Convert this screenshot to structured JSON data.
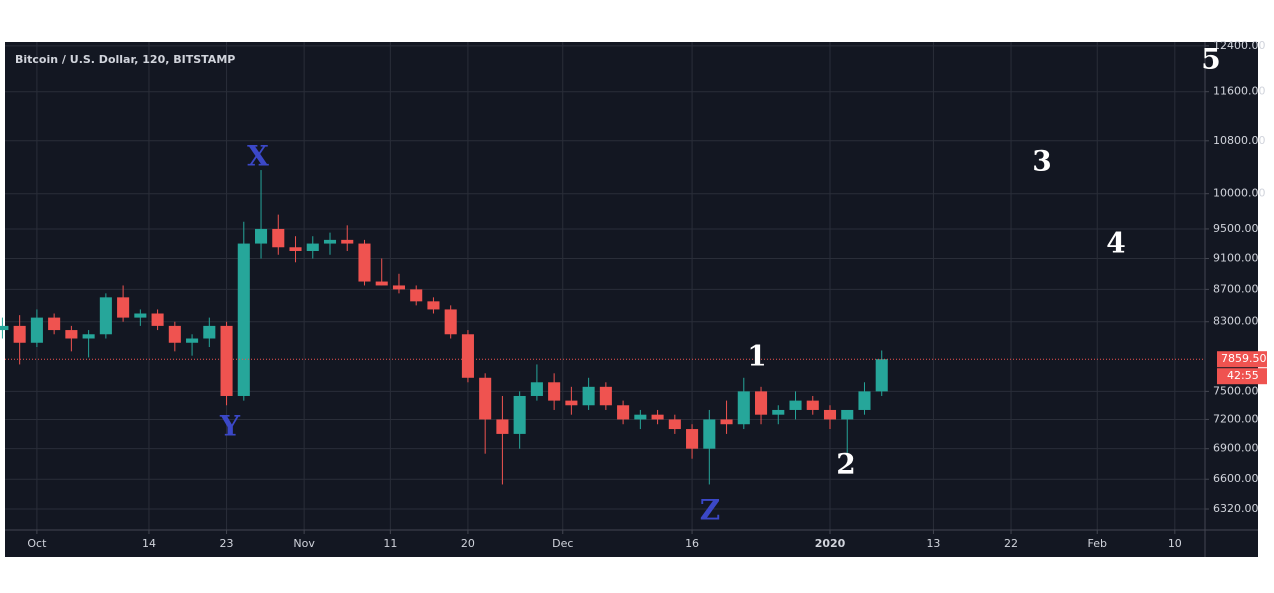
{
  "chart_data": {
    "type": "candlestick",
    "title": "Bitcoin / U.S. Dollar, 120, BITSTAMP",
    "log_scale": true,
    "grid": true,
    "up_color": "#26a69a",
    "down_color": "#ef5350",
    "xlim": [
      -3.7,
      135.5
    ],
    "ylim": [
      6130,
      12470
    ],
    "xticks": [
      {
        "value": 0,
        "label": "Oct"
      },
      {
        "value": 13,
        "label": "14"
      },
      {
        "value": 22,
        "label": "23"
      },
      {
        "value": 31,
        "label": "Nov"
      },
      {
        "value": 41,
        "label": "11"
      },
      {
        "value": 50,
        "label": "20"
      },
      {
        "value": 61,
        "label": "Dec"
      },
      {
        "value": 76,
        "label": "16"
      },
      {
        "value": 92,
        "label": "2020"
      },
      {
        "value": 104,
        "label": "13"
      },
      {
        "value": 113,
        "label": "22"
      },
      {
        "value": 123,
        "label": "Feb"
      },
      {
        "value": 132,
        "label": "10"
      }
    ],
    "yticks": [
      {
        "value": 6320,
        "label": "6320.00"
      },
      {
        "value": 6600,
        "label": "6600.00"
      },
      {
        "value": 6900,
        "label": "6900.00"
      },
      {
        "value": 7200,
        "label": "7200.00"
      },
      {
        "value": 7500,
        "label": "7500.00"
      },
      {
        "value": 8300,
        "label": "8300.00"
      },
      {
        "value": 8700,
        "label": "8700.00"
      },
      {
        "value": 9100,
        "label": "9100.00"
      },
      {
        "value": 9500,
        "label": "9500.00"
      },
      {
        "value": 10000,
        "label": "10000.00"
      },
      {
        "value": 10800,
        "label": "10800.00"
      },
      {
        "value": 11600,
        "label": "11600.00"
      },
      {
        "value": 12400,
        "label": "12400.00"
      }
    ],
    "x": [
      -4,
      -2,
      0,
      2,
      4,
      6,
      8,
      10,
      12,
      14,
      16,
      18,
      20,
      22,
      24,
      26,
      28,
      30,
      32,
      34,
      36,
      38,
      40,
      42,
      44,
      46,
      48,
      50,
      52,
      54,
      56,
      58,
      60,
      62,
      64,
      66,
      68,
      70,
      72,
      74,
      76,
      78,
      80,
      82,
      84,
      86,
      88,
      90,
      92,
      94,
      96,
      98
    ],
    "open": [
      8200,
      8250,
      8050,
      8350,
      8200,
      8100,
      8150,
      8600,
      8350,
      8400,
      8250,
      8050,
      8100,
      8250,
      7450,
      9300,
      9500,
      9250,
      9200,
      9300,
      9350,
      9300,
      8800,
      8750,
      8700,
      8550,
      8450,
      8150,
      7650,
      7200,
      7050,
      7450,
      7600,
      7400,
      7350,
      7550,
      7350,
      7200,
      7250,
      7200,
      7100,
      6900,
      7200,
      7150,
      7500,
      7250,
      7300,
      7400,
      7300,
      7200,
      7300,
      7500
    ],
    "high": [
      8350,
      8380,
      8450,
      8400,
      8250,
      8200,
      8650,
      8750,
      8450,
      8450,
      8300,
      8150,
      8350,
      8300,
      9600,
      10350,
      9700,
      9400,
      9400,
      9450,
      9550,
      9350,
      9100,
      8900,
      8750,
      8600,
      8500,
      8200,
      7700,
      7450,
      7500,
      7800,
      7700,
      7550,
      7650,
      7600,
      7400,
      7300,
      7300,
      7250,
      7150,
      7300,
      7400,
      7650,
      7550,
      7350,
      7500,
      7450,
      7350,
      7250,
      7600,
      7960
    ],
    "low": [
      8100,
      7800,
      8000,
      8150,
      7950,
      7880,
      8100,
      8300,
      8250,
      8200,
      7950,
      7900,
      8000,
      7350,
      7400,
      9100,
      9150,
      9050,
      9100,
      9150,
      9200,
      8750,
      8750,
      8650,
      8500,
      8400,
      8100,
      7600,
      6850,
      6550,
      6900,
      7400,
      7300,
      7250,
      7300,
      7300,
      7150,
      7100,
      7150,
      7050,
      6800,
      6550,
      7050,
      7100,
      7150,
      7150,
      7200,
      7250,
      7100,
      6850,
      7250,
      7450
    ],
    "close": [
      8250,
      8050,
      8350,
      8200,
      8100,
      8150,
      8600,
      8350,
      8400,
      8250,
      8050,
      8100,
      8250,
      7450,
      9300,
      9500,
      9250,
      9200,
      9300,
      9350,
      9300,
      8800,
      8750,
      8700,
      8550,
      8450,
      8150,
      7650,
      7200,
      7050,
      7450,
      7600,
      7400,
      7350,
      7550,
      7350,
      7200,
      7250,
      7200,
      7100,
      6900,
      7200,
      7150,
      7500,
      7250,
      7300,
      7400,
      7300,
      7200,
      7300,
      7500,
      7860
    ],
    "price_line": {
      "value": 7859.5,
      "label": "7859.50"
    },
    "countdown": "42:55",
    "annotations": [
      {
        "text": "X",
        "color": "#3b48c8"
      },
      {
        "text": "Y",
        "color": "#3b48c8"
      },
      {
        "text": "Z",
        "color": "#3b48c8"
      },
      {
        "text": "1",
        "color": "#ffffff"
      },
      {
        "text": "2",
        "color": "#ffffff"
      },
      {
        "text": "3",
        "color": "#ffffff"
      },
      {
        "text": "4",
        "color": "#ffffff"
      },
      {
        "text": "5",
        "color": "#ffffff"
      }
    ]
  }
}
